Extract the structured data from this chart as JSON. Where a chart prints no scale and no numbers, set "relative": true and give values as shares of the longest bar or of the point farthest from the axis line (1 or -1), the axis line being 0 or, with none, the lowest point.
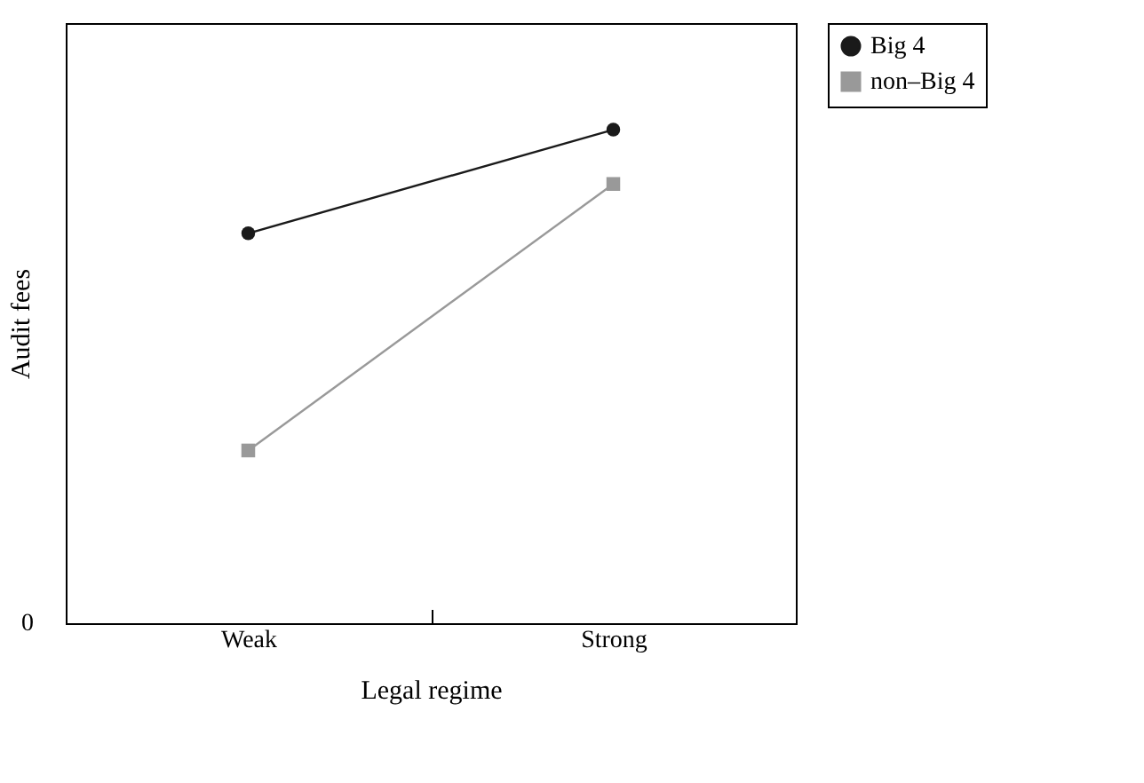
{
  "chart_data": {
    "type": "line",
    "xlabel": "Legal regime",
    "ylabel": "Audit fees",
    "categories": [
      "Weak",
      "Strong"
    ],
    "relative": true,
    "legend": "right",
    "annotations": [
      "0"
    ],
    "series": [
      {
        "name": "Big 4",
        "color": "#1a1a1a",
        "marker": "circle",
        "values": [
          0.79,
          1
        ]
      },
      {
        "name": "non–Big 4",
        "color": "#999999",
        "marker": "square",
        "values": [
          0.35,
          0.89
        ]
      }
    ]
  }
}
